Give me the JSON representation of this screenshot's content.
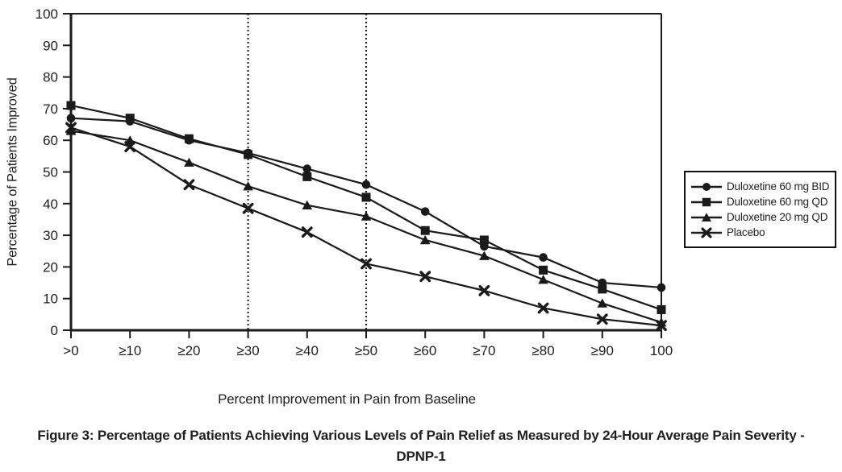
{
  "figure": {
    "caption": "Figure 3: Percentage of Patients Achieving Various Levels of Pain Relief as Measured by 24-Hour Average Pain Severity - DPNP-1"
  },
  "chart_data": {
    "type": "line",
    "title": "",
    "xlabel": "Percent Improvement in Pain from Baseline",
    "ylabel": "Percentage of Patients Improved",
    "categories": [
      ">0",
      "≥10",
      "≥20",
      "≥30",
      "≥40",
      "≥50",
      "≥60",
      "≥70",
      "≥80",
      "≥90",
      "100"
    ],
    "yticks": [
      100,
      90,
      80,
      70,
      60,
      50,
      40,
      30,
      20,
      10,
      0
    ],
    "ylim": [
      0,
      100
    ],
    "grid": false,
    "dashed_vlines_at": [
      "≥30",
      "≥50"
    ],
    "legend_position": "outside-right",
    "colors": {
      "line": "#1a1a1a",
      "text": "#1f1f1f",
      "background": "#ffffff"
    },
    "series": [
      {
        "name": "Duloxetine 60 mg BID",
        "marker": "circle",
        "values": [
          67,
          66,
          60,
          56,
          51,
          46,
          37.5,
          26.5,
          23,
          15,
          13.5
        ]
      },
      {
        "name": "Duloxetine 60 mg QD",
        "marker": "square",
        "values": [
          71,
          67,
          60.5,
          55.5,
          48.5,
          42,
          31.5,
          28.5,
          19,
          13,
          6.5
        ]
      },
      {
        "name": "Duloxetine 20 mg QD",
        "marker": "triangle",
        "values": [
          63,
          60,
          53,
          45.5,
          39.5,
          36,
          28.5,
          23.5,
          16,
          8.5,
          2.5
        ]
      },
      {
        "name": "Placebo",
        "marker": "x",
        "values": [
          64,
          58,
          46,
          38.5,
          31,
          21,
          17,
          12.5,
          7,
          3.5,
          1.5
        ]
      }
    ]
  }
}
